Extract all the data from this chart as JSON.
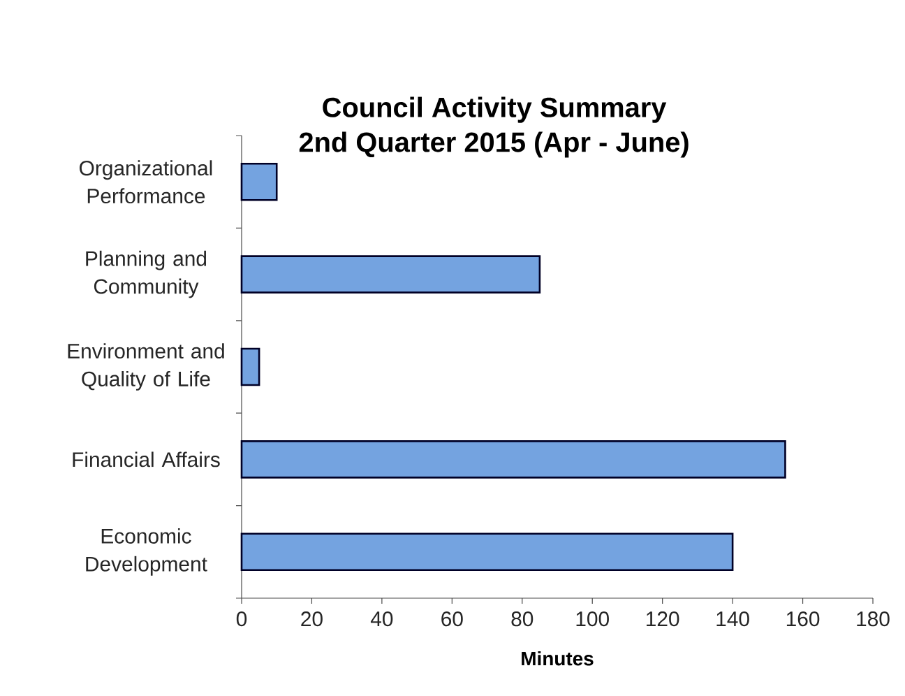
{
  "chart_data": {
    "type": "bar",
    "orientation": "horizontal",
    "title": "Council Activity Summary",
    "subtitle": "2nd Quarter 2015 (Apr - June)",
    "xlabel": "Minutes",
    "categories": [
      "Organizational Performance",
      "Planning and Community",
      "Environment and Quality of Life",
      "Financial Affairs",
      "Economic Development"
    ],
    "values": [
      10,
      85,
      5,
      155,
      140
    ],
    "color": "#74a3e0",
    "xlim": [
      0,
      180
    ],
    "xticks": [
      0,
      20,
      40,
      60,
      80,
      100,
      120,
      140,
      160,
      180
    ]
  }
}
